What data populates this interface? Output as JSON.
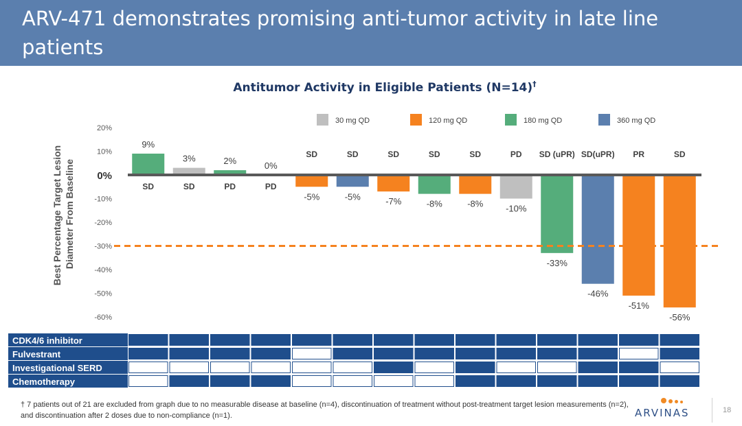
{
  "slide": {
    "title": "ARV-471 demonstrates promising anti-tumor activity in late line patients",
    "footnote": "† 7 patients out of 21 are excluded from graph due to no measurable disease at baseline (n=4), discontinuation of treatment without post-treatment target lesion measurements (n=2), and discontinuation after 2 doses due to non-compliance (n=1).",
    "logo": "ARVINAS",
    "page_number": "18"
  },
  "chart_data": {
    "type": "bar",
    "title": "Antitumor Activity in Eligible Patients (N=14)",
    "title_superscript": "†",
    "ylabel": "Best Percentage Target Lesion Diameter From Baseline",
    "ylim": [
      -60,
      20
    ],
    "yticks": [
      {
        "value": 20,
        "label": "20%"
      },
      {
        "value": 10,
        "label": "10%"
      },
      {
        "value": 0,
        "label": "0%"
      },
      {
        "value": -10,
        "label": "-10%"
      },
      {
        "value": -20,
        "label": "-20%"
      },
      {
        "value": -30,
        "label": "-30%"
      },
      {
        "value": -40,
        "label": "-40%"
      },
      {
        "value": -50,
        "label": "-50%"
      },
      {
        "value": -60,
        "label": "-60%"
      }
    ],
    "reference_line": -30,
    "reference_color": "#f5821f",
    "legend": [
      {
        "name": "30 mg QD",
        "color": "#bfbfbf"
      },
      {
        "name": "120 mg QD",
        "color": "#f5821f"
      },
      {
        "name": "180 mg QD",
        "color": "#55ad7b"
      },
      {
        "name": "360 mg QD",
        "color": "#5b7fae"
      }
    ],
    "legend_position": "top-right",
    "bars": [
      {
        "value": 9,
        "label": "9%",
        "response": "SD",
        "dose": "180 mg QD"
      },
      {
        "value": 3,
        "label": "3%",
        "response": "SD",
        "dose": "30 mg QD"
      },
      {
        "value": 2,
        "label": "2%",
        "response": "PD",
        "dose": "180 mg QD"
      },
      {
        "value": 0,
        "label": "0%",
        "response": "PD",
        "dose": "360 mg QD"
      },
      {
        "value": -5,
        "label": "-5%",
        "response": "SD",
        "dose": "120 mg QD"
      },
      {
        "value": -5,
        "label": "-5%",
        "response": "SD",
        "dose": "360 mg QD"
      },
      {
        "value": -7,
        "label": "-7%",
        "response": "SD",
        "dose": "120 mg QD"
      },
      {
        "value": -8,
        "label": "-8%",
        "response": "SD",
        "dose": "180 mg QD"
      },
      {
        "value": -8,
        "label": "-8%",
        "response": "SD",
        "dose": "120 mg QD"
      },
      {
        "value": -10,
        "label": "-10%",
        "response": "PD",
        "dose": "30 mg QD"
      },
      {
        "value": -33,
        "label": "-33%",
        "response": "SD (uPR)",
        "dose": "180 mg QD"
      },
      {
        "value": -46,
        "label": "-46%",
        "response": "SD(uPR)",
        "dose": "360 mg QD"
      },
      {
        "value": -51,
        "label": "-51%",
        "response": "PR",
        "dose": "120 mg QD"
      },
      {
        "value": -56,
        "label": "-56%",
        "response": "SD",
        "dose": "120 mg QD"
      }
    ],
    "prior_therapy": {
      "filled_color": "#1f4e8c",
      "rows": [
        {
          "name": "CDK4/6 inhibitor",
          "values": [
            1,
            1,
            1,
            1,
            1,
            1,
            1,
            1,
            1,
            1,
            1,
            1,
            1,
            1
          ]
        },
        {
          "name": "Fulvestrant",
          "values": [
            1,
            1,
            1,
            1,
            0,
            1,
            1,
            1,
            1,
            1,
            1,
            1,
            0,
            1
          ]
        },
        {
          "name": "Investigational SERD",
          "values": [
            0,
            0,
            0,
            0,
            0,
            0,
            1,
            0,
            1,
            0,
            0,
            1,
            1,
            0
          ]
        },
        {
          "name": "Chemotherapy",
          "values": [
            0,
            1,
            1,
            1,
            0,
            0,
            0,
            0,
            1,
            1,
            1,
            1,
            1,
            1
          ]
        }
      ]
    }
  }
}
